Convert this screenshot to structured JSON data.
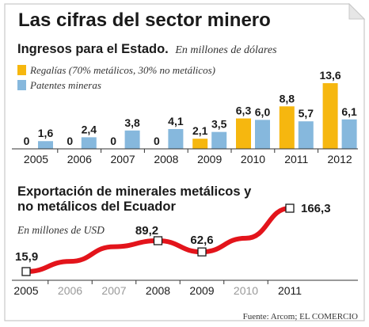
{
  "title": "Las cifras del sector minero",
  "source": "Fuente: Arcom; EL COMERCIO",
  "colors": {
    "royalties": "#f6b70f",
    "patents": "#86b8dd",
    "line": "#e3141b",
    "text": "#1a1a1a",
    "muted": "#999999",
    "frame": "#c9c9c9"
  },
  "chart_data": [
    {
      "type": "bar",
      "title": "Ingresos para el Estado.",
      "subtitle": "En millones de dólares",
      "legend_placement": "top-left",
      "categories": [
        "2005",
        "2006",
        "2007",
        "2008",
        "2009",
        "2010",
        "2011",
        "2012"
      ],
      "series": [
        {
          "name": "Regalías (70% metálicos, 30% no metálicos)",
          "values": [
            0,
            0,
            0,
            0,
            2.1,
            6.3,
            8.8,
            13.6
          ],
          "labels": [
            "0",
            "0",
            "0",
            "0",
            "2,1",
            "6,3",
            "8,8",
            "13,6"
          ]
        },
        {
          "name": "Patentes mineras",
          "values": [
            1.6,
            2.4,
            3.8,
            4.1,
            3.5,
            6.0,
            5.7,
            6.1
          ],
          "labels": [
            "1,6",
            "2,4",
            "3,8",
            "4,1",
            "3,5",
            "6,0",
            "5,7",
            "6,1"
          ]
        }
      ]
    },
    {
      "type": "line",
      "title": "Exportación de minerales metálicos y no metálicos del Ecuador",
      "subtitle": "En millones de USD",
      "x": [
        "2005",
        "2006",
        "2007",
        "2008",
        "2009",
        "2010",
        "2011"
      ],
      "x_muted": [
        false,
        true,
        true,
        false,
        false,
        true,
        false
      ],
      "values": [
        15.9,
        40,
        75,
        89.2,
        62.6,
        95,
        166.3
      ],
      "labeled_points": [
        {
          "x": "2005",
          "y": 15.9,
          "label": "15,9"
        },
        {
          "x": "2008",
          "y": 89.2,
          "label": "89,2"
        },
        {
          "x": "2009",
          "y": 62.6,
          "label": "62,6"
        },
        {
          "x": "2011",
          "y": 166.3,
          "label": "166,3"
        }
      ]
    }
  ]
}
